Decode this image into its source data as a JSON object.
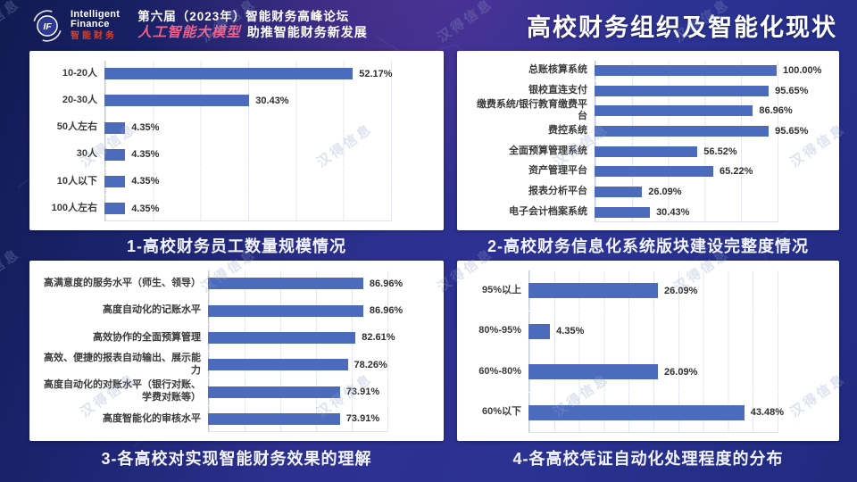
{
  "header": {
    "logo": {
      "monogram": "IF",
      "name_line1": "Intelligent",
      "name_line2": "Finance",
      "name_cn": "智能财务"
    },
    "event_line1": "第六届（2023年）智能财务高峰论坛",
    "event_line2_accent": "人工智能大模型",
    "event_line2_rest": "助推智能财务新发展",
    "slide_title": "高校财务组织及智能化现状"
  },
  "watermark_text": "汉得信息",
  "colors": {
    "bar": "#4d6bbd",
    "background_dark": "#121a52",
    "background_mid": "#2e3090",
    "logo_red": "#d6402c",
    "accent_pink": "#e8638f",
    "caption_text": "#f2f4ff"
  },
  "chart_data": [
    {
      "type": "bar",
      "orientation": "horizontal",
      "title": "1-高校财务员工数量规模情况",
      "categories": [
        "10-20人",
        "20-30人",
        "50人左右",
        "30人",
        "10人以下",
        "100人左右"
      ],
      "values": [
        52.17,
        30.43,
        4.35,
        4.35,
        4.35,
        4.35
      ],
      "unit": "%",
      "xlim": [
        0,
        60
      ],
      "grid_step": 10,
      "grid": true,
      "legend": false,
      "value_labels": true
    },
    {
      "type": "bar",
      "orientation": "horizontal",
      "title": "2-高校财务信息化系统版块建设完整度情况",
      "categories": [
        "总账核算系统",
        "银校直连支付",
        "缴费系统/银行教育缴费平台",
        "费控系统",
        "全面预算管理系统",
        "资产管理平台",
        "报表分析平台",
        "电子会计档案系统"
      ],
      "values": [
        100.0,
        95.65,
        86.96,
        95.65,
        56.52,
        65.22,
        26.09,
        30.43
      ],
      "unit": "%",
      "xlim": [
        0,
        100
      ],
      "grid_step": 20,
      "grid": true,
      "legend": false,
      "value_labels": true
    },
    {
      "type": "bar",
      "orientation": "horizontal",
      "title": "3-各高校对实现智能财务效果的理解",
      "categories": [
        "高满意度的服务水平（师生、领导）",
        "高度自动化的记账水平",
        "高效协作的全面预算管理",
        "高效、便捷的报表自动输出、展示能力",
        "高度自动化的对账水平（银行对账、学费对账等）",
        "高度智能化的审核水平"
      ],
      "values": [
        86.96,
        86.96,
        82.61,
        78.26,
        73.91,
        73.91
      ],
      "unit": "%",
      "xlim": [
        0,
        100
      ],
      "grid_step": 20,
      "grid": true,
      "legend": false,
      "value_labels": true
    },
    {
      "type": "bar",
      "orientation": "horizontal",
      "title": "4-各高校凭证自动化处理程度的分布",
      "categories": [
        "95%以上",
        "80%-95%",
        "60%-80%",
        "60%以下"
      ],
      "values": [
        26.09,
        4.35,
        26.09,
        43.48
      ],
      "unit": "%",
      "xlim": [
        0,
        50
      ],
      "grid_step": 5,
      "grid": true,
      "legend": false,
      "value_labels": true
    }
  ]
}
